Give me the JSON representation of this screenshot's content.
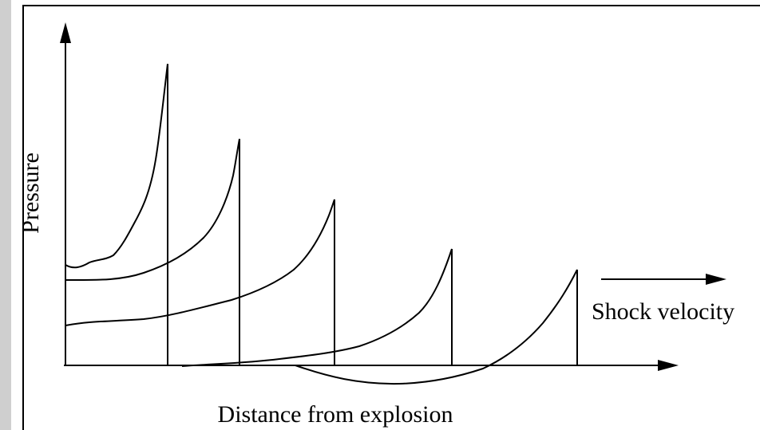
{
  "diagram": {
    "y_axis_label": "Pressure",
    "x_axis_label": "Distance from explosion",
    "arrow_label": "Shock velocity"
  },
  "colors": {
    "ink": "#000000",
    "background": "#ffffff",
    "left_edge": "#cfcfcf"
  }
}
